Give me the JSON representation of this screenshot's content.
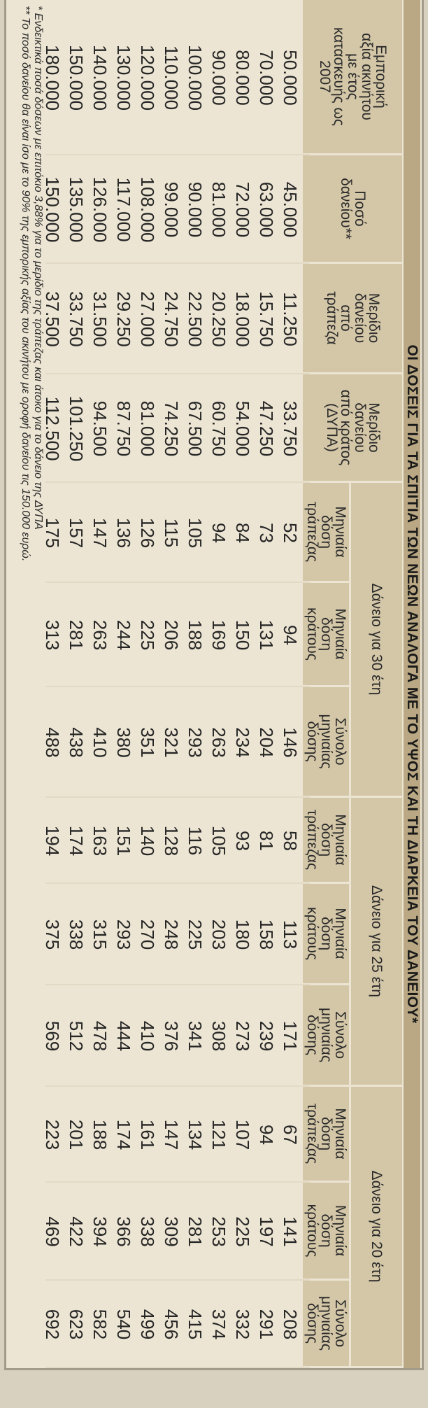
{
  "title": "ΟΙ ΔΟΣΕΙΣ ΓΙΑ ΤΑ ΣΠΙΤΙΑ ΤΩΝ ΝΕΩΝ ΑΝΑΛΟΓΑ ΜΕ ΤΟ ΥΨΟΣ ΚΑΙ ΤΗ ΔΙΑΡΚΕΙΑ ΤΟΥ ΔΑΝΕΙΟΥ*",
  "columns": [
    "Εμπορική\nαξία ακινήτου\nμε έτος\nκατασκευής ως\n2007",
    "Ποσό\nδανείου**",
    "Μερίδιο\nδανείου\nαπό\nτράπεζα",
    "Μερίδιο\nδανείου\nαπό κράτος\n(ΔΥΠΑ)",
    "Μηνιαία\nδόση\nτράπεζας",
    "Μηνιαία\nδόση\nκράτους",
    "Σύνολο\nμηνιαίας\nδόσης",
    "Μηνιαία\nδόση\nτράπεζας",
    "Μηνιαία\nδόση\nκράτους",
    "Σύνολο\nμηνιαίας\nδόσης",
    "Μηνιαία\nδόση\nτράπεζας",
    "Μηνιαία\nδόση\nκράτους",
    "Σύνολο\nμηνιαίας\nδόσης"
  ],
  "groups": [
    "Δάνειο για 30 έτη",
    "Δάνειο για 25 έτη",
    "Δάνειο για 20 έτη"
  ],
  "rows": [
    [
      "50.000",
      "45.000",
      "11.250",
      "33.750",
      "52",
      "94",
      "146",
      "58",
      "113",
      "171",
      "67",
      "141",
      "208"
    ],
    [
      "70.000",
      "63.000",
      "15.750",
      "47.250",
      "73",
      "131",
      "204",
      "81",
      "158",
      "239",
      "94",
      "197",
      "291"
    ],
    [
      "80.000",
      "72.000",
      "18.000",
      "54.000",
      "84",
      "150",
      "234",
      "93",
      "180",
      "273",
      "107",
      "225",
      "332"
    ],
    [
      "90.000",
      "81.000",
      "20.250",
      "60.750",
      "94",
      "169",
      "263",
      "105",
      "203",
      "308",
      "121",
      "253",
      "374"
    ],
    [
      "100.000",
      "90.000",
      "22.500",
      "67.500",
      "105",
      "188",
      "293",
      "116",
      "225",
      "341",
      "134",
      "281",
      "415"
    ],
    [
      "110.000",
      "99.000",
      "24.750",
      "74.250",
      "115",
      "206",
      "321",
      "128",
      "248",
      "376",
      "147",
      "309",
      "456"
    ],
    [
      "120.000",
      "108.000",
      "27.000",
      "81.000",
      "126",
      "225",
      "351",
      "140",
      "270",
      "410",
      "161",
      "338",
      "499"
    ],
    [
      "130.000",
      "117.000",
      "29.250",
      "87.750",
      "136",
      "244",
      "380",
      "151",
      "293",
      "444",
      "174",
      "366",
      "540"
    ],
    [
      "140.000",
      "126.000",
      "31.500",
      "94.500",
      "147",
      "263",
      "410",
      "163",
      "315",
      "478",
      "188",
      "394",
      "582"
    ],
    [
      "150.000",
      "135.000",
      "33.750",
      "101.250",
      "157",
      "281",
      "438",
      "174",
      "338",
      "512",
      "201",
      "422",
      "623"
    ],
    [
      "180.000",
      "150.000",
      "37.500",
      "112.500",
      "175",
      "313",
      "488",
      "194",
      "375",
      "569",
      "223",
      "469",
      "692"
    ]
  ],
  "footnotes": [
    "* Ενδεικτικά ποσά δόσεων με επιτόκιο 3,88% για το μερίδιο της τράπεζας και άτοκο για το δάνειο της ΔΥΠΑ",
    "** Το ποσό δανείου θα είναι ίσο με το 90% της εμπορικής αξίας του ακινήτου με οροφή δανείου τις 150.000 ευρώ."
  ]
}
